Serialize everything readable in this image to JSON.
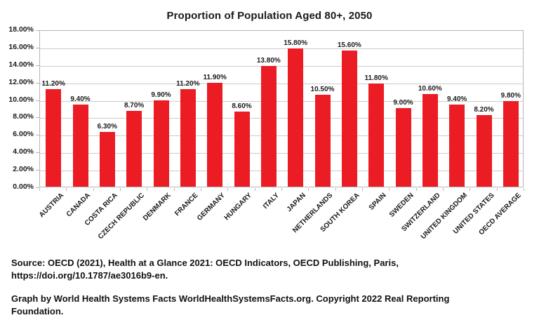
{
  "chart_data": {
    "type": "bar",
    "title": "Proportion of Population Aged 80+, 2050",
    "categories": [
      "AUSTRIA",
      "CANADA",
      "COSTA RICA",
      "CZECH REPUBLIC",
      "DENMARK",
      "FRANCE",
      "GERMANY",
      "HUNGARY",
      "ITALY",
      "JAPAN",
      "NETHERLANDS",
      "SOUTH KOREA",
      "SPAIN",
      "SWEDEN",
      "SWITZERLAND",
      "UNITED KINGDOM",
      "UNITED STATES",
      "OECD AVERAGE"
    ],
    "values": [
      11.2,
      9.4,
      6.3,
      8.7,
      9.9,
      11.2,
      11.9,
      8.6,
      13.8,
      15.8,
      10.5,
      15.6,
      11.8,
      9.0,
      10.6,
      9.4,
      8.2,
      9.8
    ],
    "bar_labels": [
      "11.20%",
      "9.40%",
      "6.30%",
      "8.70%",
      "9.90%",
      "11.20%",
      "11.90%",
      "8.60%",
      "13.80%",
      "15.80%",
      "10.50%",
      "15.60%",
      "11.80%",
      "9.00%",
      "10.60%",
      "9.40%",
      "8.20%",
      "9.80%"
    ],
    "y_ticks": [
      "0.00%",
      "2.00%",
      "4.00%",
      "6.00%",
      "8.00%",
      "10.00%",
      "12.00%",
      "14.00%",
      "16.00%",
      "18.00%"
    ],
    "xlabel": "",
    "ylabel": "",
    "ylim": [
      0,
      18
    ],
    "ytick_step": 2,
    "grid": true,
    "legend_position": "none",
    "bar_color": "#ec1c24",
    "gridline_color": "#cccccc",
    "axis_color": "#b5b5b5",
    "text_color": "#1a1a1a"
  },
  "footer": {
    "source_lines": [
      "Source: OECD (2021), Health at a Glance 2021: OECD Indicators, OECD Publishing, Paris,",
      "https://doi.org/10.1787/ae3016b9-en."
    ],
    "credit_lines": [
      "Graph by World Health Systems Facts WorldHealthSystemsFacts.org. Copyright 2022 Real Reporting",
      "Foundation."
    ]
  }
}
